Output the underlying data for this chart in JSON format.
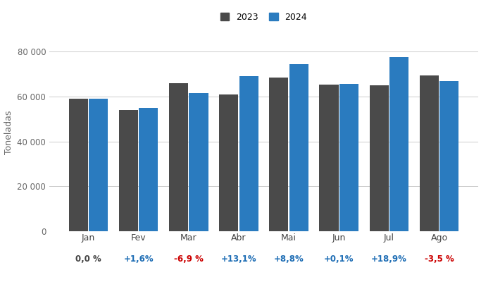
{
  "months": [
    "Jan",
    "Fev",
    "Mar",
    "Abr",
    "Mai",
    "Jun",
    "Jul",
    "Ago"
  ],
  "values_2023": [
    59000,
    54000,
    66000,
    61000,
    68500,
    65500,
    65200,
    69500
  ],
  "values_2024": [
    59000,
    54864,
    61446,
    68991,
    74524,
    65566,
    77530,
    67068
  ],
  "variations": [
    "0,0 %",
    "+1,6%",
    "-6,9 %",
    "+13,1%",
    "+8,8%",
    "+0,1%",
    "+18,9%",
    "-3,5 %"
  ],
  "var_colors": [
    "#444444",
    "#1f6eb5",
    "#cc0000",
    "#1f6eb5",
    "#1f6eb5",
    "#1f6eb5",
    "#1f6eb5",
    "#cc0000"
  ],
  "color_2023": "#4a4a4a",
  "color_2024": "#2a7bbf",
  "ylabel": "Toneladas",
  "ylim": [
    0,
    88000
  ],
  "yticks": [
    0,
    20000,
    40000,
    60000,
    80000
  ],
  "ytick_labels": [
    "0",
    "20 000",
    "40 000",
    "60 000",
    "80 000"
  ],
  "legend_labels": [
    "2023",
    "2024"
  ],
  "bg_color": "#ffffff",
  "grid_color": "#cccccc"
}
